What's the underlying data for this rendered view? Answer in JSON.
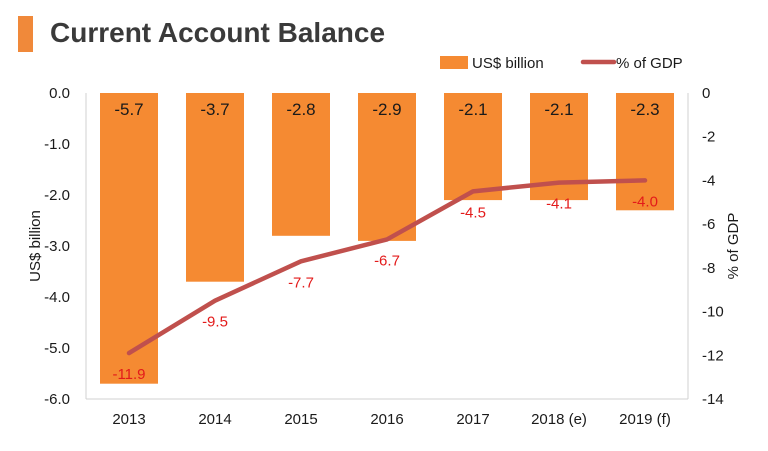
{
  "header": {
    "title": "Current Account Balance",
    "accent_color": "#f0893a"
  },
  "chart_data": {
    "type": "bar",
    "categories": [
      "2013",
      "2014",
      "2015",
      "2016",
      "2017",
      "2018 (e)",
      "2019 (f)"
    ],
    "series": [
      {
        "name": "US$ billion",
        "type": "bar",
        "axis": "left",
        "color": "#f58a32",
        "label_color": "#1a1a1a",
        "values": [
          -5.7,
          -3.7,
          -2.8,
          -2.9,
          -2.1,
          -2.1,
          -2.3
        ],
        "labels": [
          "-5.7",
          "-3.7",
          "-2.8",
          "-2.9",
          "-2.1",
          "-2.1",
          "-2.3"
        ]
      },
      {
        "name": "% of GDP",
        "type": "line",
        "axis": "right",
        "color": "#c0504d",
        "label_color": "#e31a1a",
        "values": [
          -11.9,
          -9.5,
          -7.7,
          -6.7,
          -4.5,
          -4.1,
          -4.0
        ],
        "labels": [
          "-11.9",
          "-9.5",
          "-7.7",
          "-6.7",
          "-4.5",
          "-4.1",
          "-4.0"
        ]
      }
    ],
    "ylabel": "US$ billion",
    "y2label": "% of GDP",
    "ylim": [
      -6,
      0
    ],
    "y2lim": [
      -14,
      0
    ],
    "yticks": [
      "0.0",
      "-1.0",
      "-2.0",
      "-3.0",
      "-4.0",
      "-5.0",
      "-6.0"
    ],
    "y2ticks": [
      "0",
      "-2",
      "-4",
      "-6",
      "-8",
      "-10",
      "-12",
      "-14"
    ],
    "grid": false,
    "legend_position": "top-right"
  }
}
